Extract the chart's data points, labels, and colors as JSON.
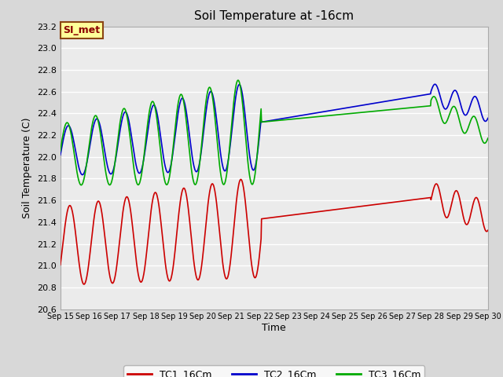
{
  "title": "Soil Temperature at -16cm",
  "xlabel": "Time",
  "ylabel": "Soil Temperature (C)",
  "ylim": [
    20.6,
    23.2
  ],
  "yticks": [
    20.6,
    20.8,
    21.0,
    21.2,
    21.4,
    21.6,
    21.8,
    22.0,
    22.2,
    22.4,
    22.6,
    22.8,
    23.0,
    23.2
  ],
  "fig_facecolor": "#d8d8d8",
  "ax_facecolor": "#ebebeb",
  "grid_color": "white",
  "annotation_text": "SI_met",
  "annotation_bg": "#ffff99",
  "annotation_border": "#8B4513",
  "tc1_color": "#cc0000",
  "tc2_color": "#0000cc",
  "tc3_color": "#00aa00",
  "legend_labels": [
    "TC1_16Cm",
    "TC2_16Cm",
    "TC3_16Cm"
  ],
  "xtick_labels": [
    "Sep 15",
    "Sep 16",
    "Sep 17",
    "Sep 18",
    "Sep 19",
    "Sep 20",
    "Sep 21",
    "Sep 22",
    "Sep 23",
    "Sep 24",
    "Sep 25",
    "Sep 26",
    "Sep 27",
    "Sep 28",
    "Sep 29",
    "Sep 30"
  ]
}
